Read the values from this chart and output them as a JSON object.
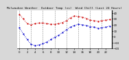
{
  "title": "Milwaukee Weather  Outdoor Temp (vs)  Wind Chill (Last 24 Hours)",
  "bg_color": "#d8d8d8",
  "plot_bg_color": "#ffffff",
  "grid_color": "#888888",
  "red_color": "#cc0000",
  "blue_color": "#0000cc",
  "ylim": [
    -20,
    45
  ],
  "yticks": [
    -20,
    -10,
    0,
    10,
    20,
    30,
    40
  ],
  "temp_data": [
    38,
    30,
    22,
    20,
    22,
    23,
    23,
    22,
    21,
    21,
    22,
    24,
    27,
    32,
    35,
    34,
    33,
    31,
    28,
    27,
    26,
    27,
    28,
    29
  ],
  "windchill_data": [
    15,
    5,
    -5,
    -13,
    -15,
    -14,
    -12,
    -9,
    -5,
    -1,
    2,
    7,
    12,
    16,
    19,
    21,
    20,
    19,
    17,
    16,
    14,
    15,
    16,
    18
  ],
  "n_points": 24,
  "title_fontsize": 3.2,
  "tick_fontsize": 2.8,
  "ylabel_fontsize": 2.8,
  "linewidth": 0.7,
  "markersize": 1.2,
  "grid_linewidth": 0.4,
  "grid_linestyle": "--"
}
